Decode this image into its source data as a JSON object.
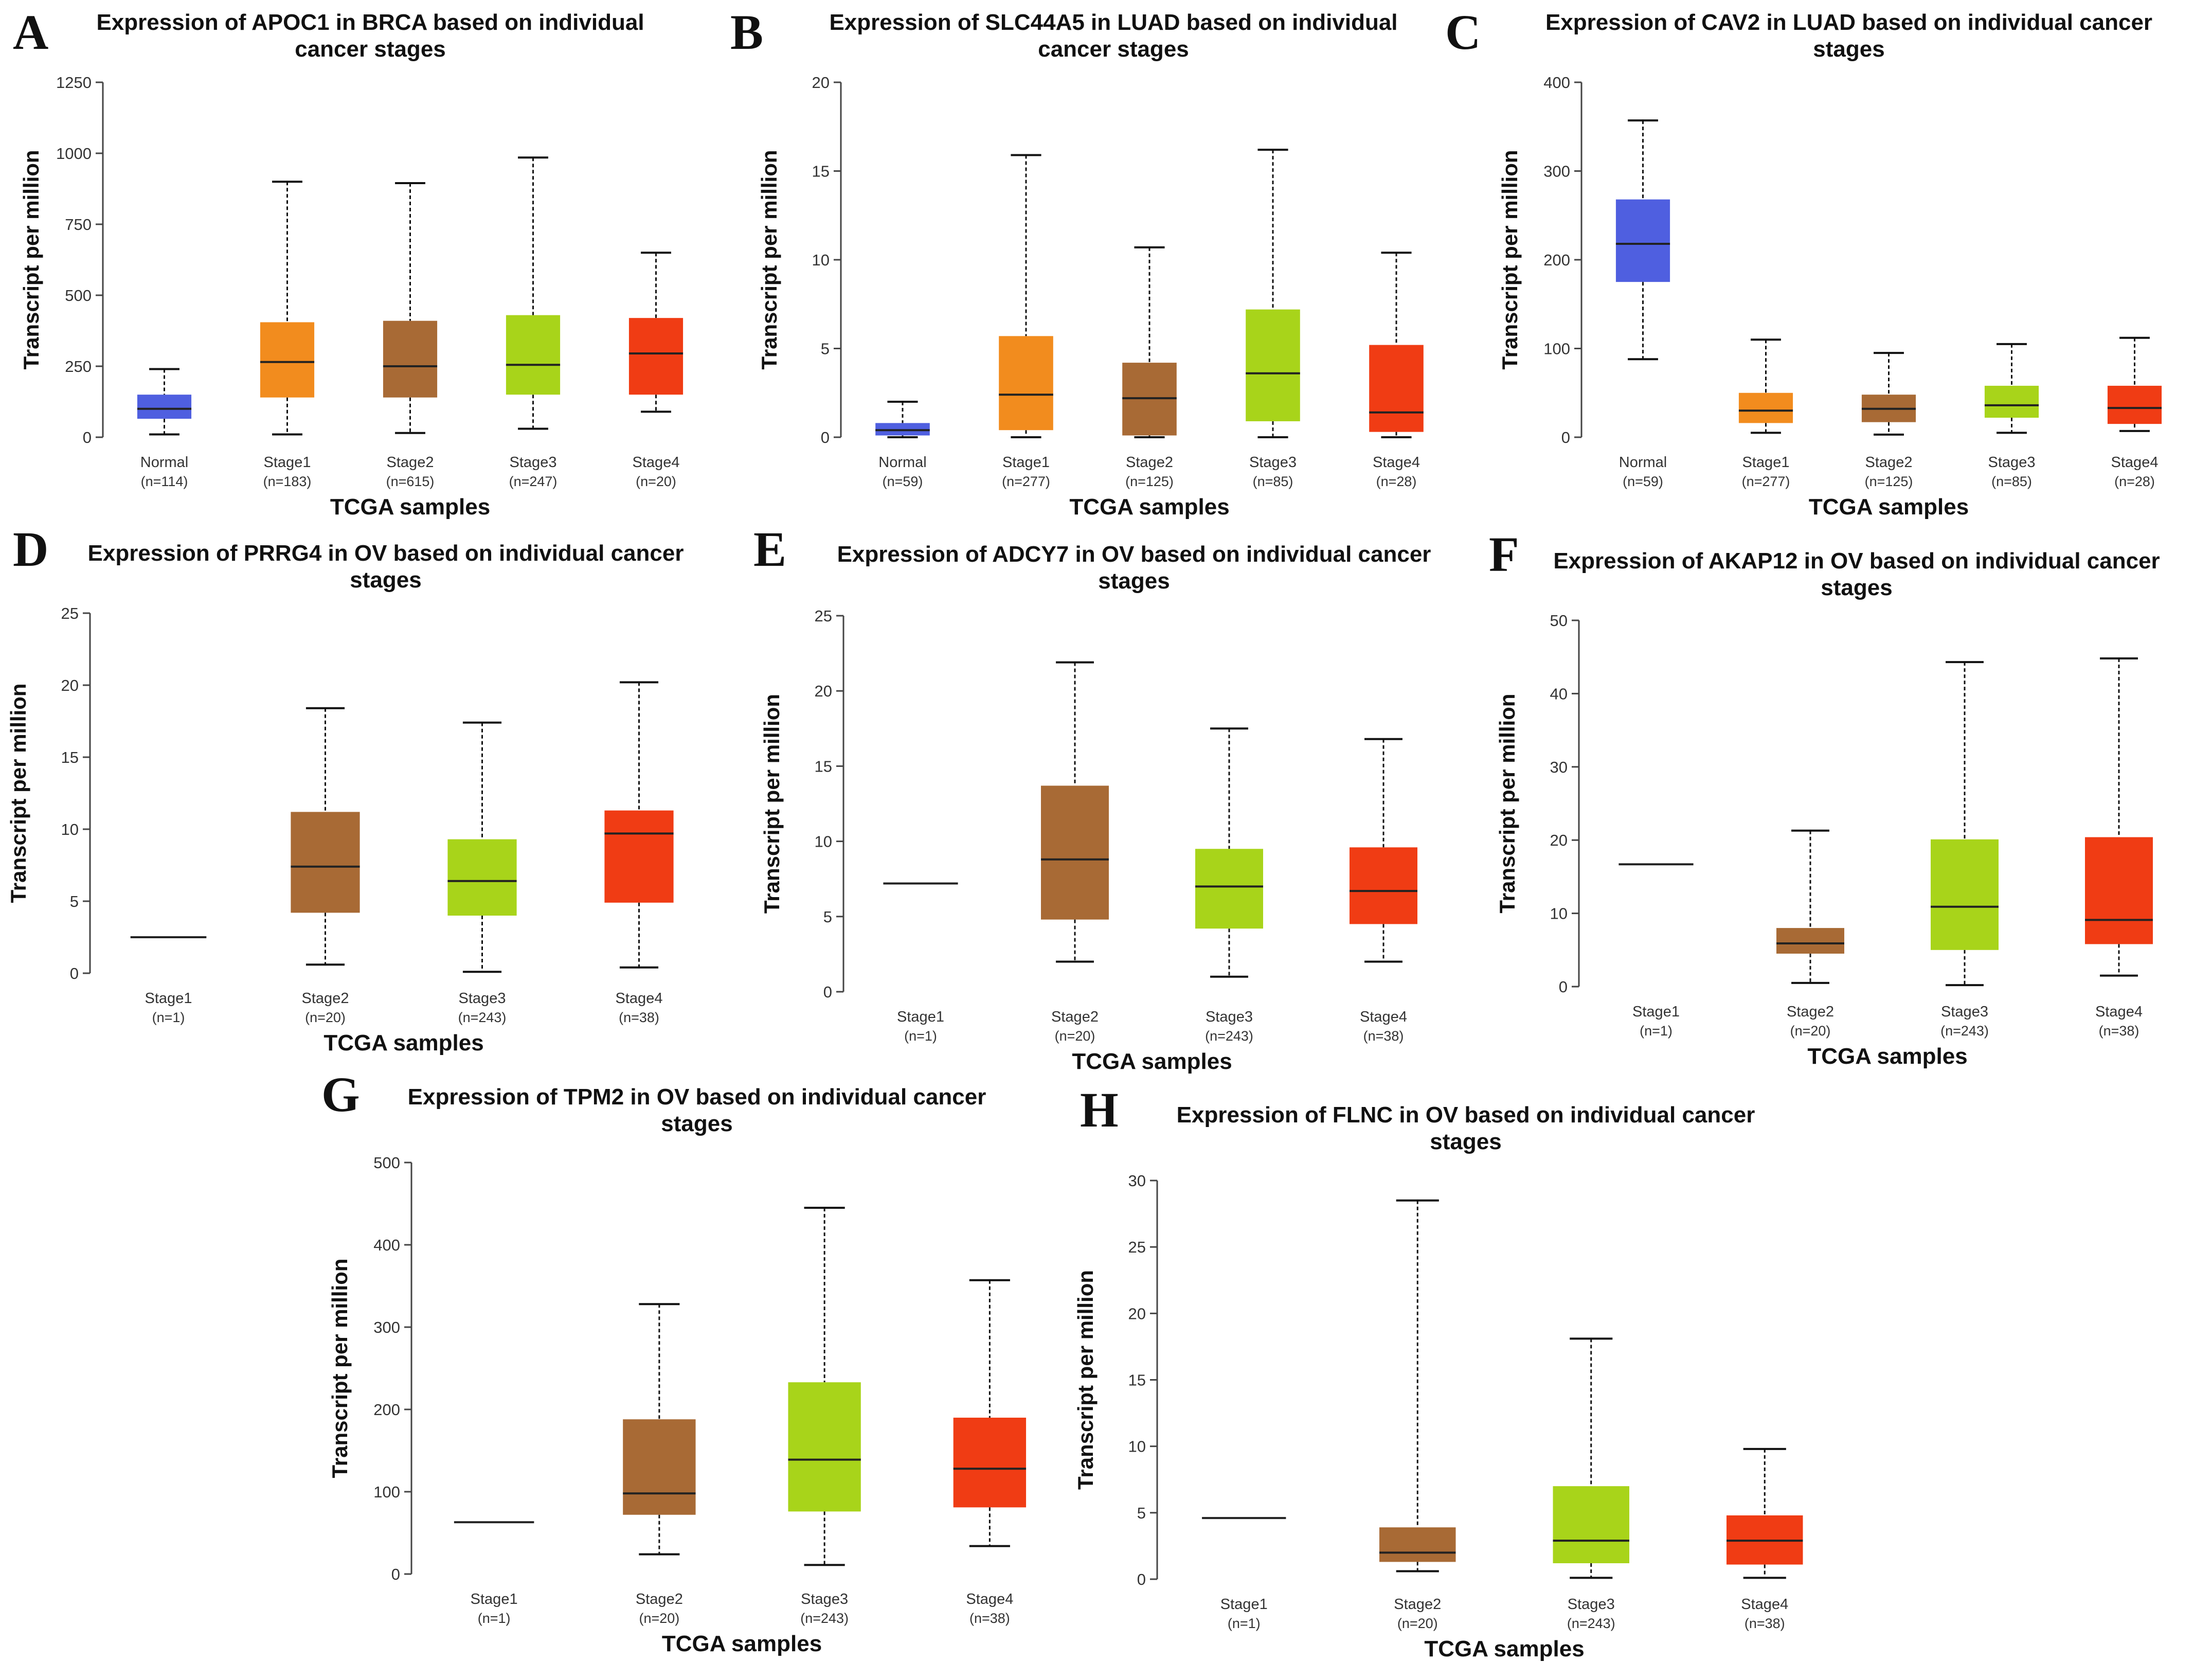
{
  "figure": {
    "layout": "3 rows of box-plot panels: row 1 A-C, row 2 D-F, row 3 G-H"
  },
  "colors": {
    "Normal": "#4f5fe0",
    "Stage1": "#f28c1e",
    "Stage2": "#a86a35",
    "Stage3": "#a8d41a",
    "Stage4": "#f03c14",
    "median": "#222222",
    "axis": "#444444"
  },
  "chart_data": [
    {
      "panel": "A",
      "type": "box",
      "title": "Expression of APOC1 in BRCA based on individual cancer stages",
      "title_lines": [
        "Expression of APOC1 in BRCA based on individual",
        "cancer stages"
      ],
      "xlabel": "TCGA samples",
      "ylabel": "Transcript per million",
      "ylim": [
        0,
        1250
      ],
      "yticks": [
        0,
        250,
        500,
        750,
        1000,
        1250
      ],
      "categories": [
        {
          "name": "Normal",
          "n": "(n=114)",
          "min": 10,
          "q1": 65,
          "median": 100,
          "q3": 150,
          "max": 240
        },
        {
          "name": "Stage1",
          "n": "(n=183)",
          "min": 10,
          "q1": 140,
          "median": 265,
          "q3": 405,
          "max": 900
        },
        {
          "name": "Stage2",
          "n": "(n=615)",
          "min": 15,
          "q1": 140,
          "median": 250,
          "q3": 410,
          "max": 895
        },
        {
          "name": "Stage3",
          "n": "(n=247)",
          "min": 30,
          "q1": 150,
          "median": 255,
          "q3": 430,
          "max": 985
        },
        {
          "name": "Stage4",
          "n": "(n=20)",
          "min": 90,
          "q1": 150,
          "median": 295,
          "q3": 420,
          "max": 650
        }
      ]
    },
    {
      "panel": "B",
      "type": "box",
      "title": "Expression of SLC44A5 in LUAD based on individual cancer stages",
      "title_lines": [
        "Expression of SLC44A5 in LUAD based on individual",
        "cancer stages"
      ],
      "xlabel": "TCGA samples",
      "ylabel": "Transcript per million",
      "ylim": [
        0,
        20
      ],
      "yticks": [
        0,
        5,
        10,
        15,
        20
      ],
      "categories": [
        {
          "name": "Normal",
          "n": "(n=59)",
          "min": 0,
          "q1": 0.1,
          "median": 0.4,
          "q3": 0.8,
          "max": 2.0
        },
        {
          "name": "Stage1",
          "n": "(n=277)",
          "min": 0,
          "q1": 0.4,
          "median": 2.4,
          "q3": 5.7,
          "max": 15.9
        },
        {
          "name": "Stage2",
          "n": "(n=125)",
          "min": 0,
          "q1": 0.1,
          "median": 2.2,
          "q3": 4.2,
          "max": 10.7
        },
        {
          "name": "Stage3",
          "n": "(n=85)",
          "min": 0,
          "q1": 0.9,
          "median": 3.6,
          "q3": 7.2,
          "max": 16.2
        },
        {
          "name": "Stage4",
          "n": "(n=28)",
          "min": 0,
          "q1": 0.3,
          "median": 1.4,
          "q3": 5.2,
          "max": 10.4
        }
      ]
    },
    {
      "panel": "C",
      "type": "box",
      "title": "Expression of CAV2 in LUAD based on individual cancer stages",
      "title_lines": [
        "Expression of CAV2 in LUAD based on individual cancer",
        "stages"
      ],
      "xlabel": "TCGA samples",
      "ylabel": "Transcript per million",
      "ylim": [
        0,
        400
      ],
      "yticks": [
        0,
        100,
        200,
        300,
        400
      ],
      "categories": [
        {
          "name": "Normal",
          "n": "(n=59)",
          "min": 88,
          "q1": 175,
          "median": 218,
          "q3": 268,
          "max": 357
        },
        {
          "name": "Stage1",
          "n": "(n=277)",
          "min": 5,
          "q1": 16,
          "median": 30,
          "q3": 50,
          "max": 110
        },
        {
          "name": "Stage2",
          "n": "(n=125)",
          "min": 3,
          "q1": 17,
          "median": 32,
          "q3": 48,
          "max": 95
        },
        {
          "name": "Stage3",
          "n": "(n=85)",
          "min": 5,
          "q1": 22,
          "median": 36,
          "q3": 58,
          "max": 105
        },
        {
          "name": "Stage4",
          "n": "(n=28)",
          "min": 7,
          "q1": 15,
          "median": 33,
          "q3": 58,
          "max": 112
        }
      ]
    },
    {
      "panel": "D",
      "type": "box",
      "title": "Expression of PRRG4 in OV based on individual cancer stages",
      "title_lines": [
        "Expression of PRRG4 in OV based on individual cancer",
        "stages"
      ],
      "xlabel": "TCGA samples",
      "ylabel": "Transcript per million",
      "ylim": [
        0,
        25
      ],
      "yticks": [
        0,
        5,
        10,
        15,
        20,
        25
      ],
      "categories": [
        {
          "name": "Stage1",
          "n": "(n=1)",
          "min": 2.5,
          "q1": 2.5,
          "median": 2.5,
          "q3": 2.5,
          "max": 2.5
        },
        {
          "name": "Stage2",
          "n": "(n=20)",
          "min": 0.6,
          "q1": 4.2,
          "median": 7.4,
          "q3": 11.2,
          "max": 18.4
        },
        {
          "name": "Stage3",
          "n": "(n=243)",
          "min": 0.1,
          "q1": 4.0,
          "median": 6.4,
          "q3": 9.3,
          "max": 17.4
        },
        {
          "name": "Stage4",
          "n": "(n=38)",
          "min": 0.4,
          "q1": 4.9,
          "median": 9.7,
          "q3": 11.3,
          "max": 20.2
        }
      ]
    },
    {
      "panel": "E",
      "type": "box",
      "title": "Expression of ADCY7 in OV based on individual cancer stages",
      "title_lines": [
        "Expression of ADCY7 in OV based on individual cancer",
        "stages"
      ],
      "xlabel": "TCGA samples",
      "ylabel": "Transcript per million",
      "ylim": [
        0,
        25
      ],
      "yticks": [
        0,
        5,
        10,
        15,
        20,
        25
      ],
      "categories": [
        {
          "name": "Stage1",
          "n": "(n=1)",
          "min": 7.2,
          "q1": 7.2,
          "median": 7.2,
          "q3": 7.2,
          "max": 7.2
        },
        {
          "name": "Stage2",
          "n": "(n=20)",
          "min": 2.0,
          "q1": 4.8,
          "median": 8.8,
          "q3": 13.7,
          "max": 21.9
        },
        {
          "name": "Stage3",
          "n": "(n=243)",
          "min": 1.0,
          "q1": 4.2,
          "median": 7.0,
          "q3": 9.5,
          "max": 17.5
        },
        {
          "name": "Stage4",
          "n": "(n=38)",
          "min": 2.0,
          "q1": 4.5,
          "median": 6.7,
          "q3": 9.6,
          "max": 16.8
        }
      ]
    },
    {
      "panel": "F",
      "type": "box",
      "title": "Expression of AKAP12 in OV based on individual cancer stages",
      "title_lines": [
        "Expression of AKAP12 in OV based on individual cancer",
        "stages"
      ],
      "xlabel": "TCGA samples",
      "ylabel": "Transcript per million",
      "ylim": [
        0,
        50
      ],
      "yticks": [
        0,
        10,
        20,
        30,
        40,
        50
      ],
      "categories": [
        {
          "name": "Stage1",
          "n": "(n=1)",
          "min": 16.7,
          "q1": 16.7,
          "median": 16.7,
          "q3": 16.7,
          "max": 16.7
        },
        {
          "name": "Stage2",
          "n": "(n=20)",
          "min": 0.5,
          "q1": 4.5,
          "median": 5.9,
          "q3": 8.0,
          "max": 21.3
        },
        {
          "name": "Stage3",
          "n": "(n=243)",
          "min": 0.2,
          "q1": 5.0,
          "median": 10.9,
          "q3": 20.1,
          "max": 44.3
        },
        {
          "name": "Stage4",
          "n": "(n=38)",
          "min": 1.5,
          "q1": 5.8,
          "median": 9.1,
          "q3": 20.4,
          "max": 44.8
        }
      ]
    },
    {
      "panel": "G",
      "type": "box",
      "title": "Expression of TPM2 in OV based on individual cancer stages",
      "title_lines": [
        "Expression of TPM2 in OV based on individual cancer",
        "stages"
      ],
      "xlabel": "TCGA samples",
      "ylabel": "Transcript per million",
      "ylim": [
        0,
        500
      ],
      "yticks": [
        0,
        100,
        200,
        300,
        400,
        500
      ],
      "categories": [
        {
          "name": "Stage1",
          "n": "(n=1)",
          "min": 63,
          "q1": 63,
          "median": 63,
          "q3": 63,
          "max": 63
        },
        {
          "name": "Stage2",
          "n": "(n=20)",
          "min": 24,
          "q1": 72,
          "median": 98,
          "q3": 188,
          "max": 328
        },
        {
          "name": "Stage3",
          "n": "(n=243)",
          "min": 11,
          "q1": 76,
          "median": 139,
          "q3": 233,
          "max": 445
        },
        {
          "name": "Stage4",
          "n": "(n=38)",
          "min": 34,
          "q1": 81,
          "median": 128,
          "q3": 190,
          "max": 357
        }
      ]
    },
    {
      "panel": "H",
      "type": "box",
      "title": "Expression of FLNC in OV based on individual cancer stages",
      "title_lines": [
        "Expression of FLNC in OV based on individual cancer",
        "stages"
      ],
      "xlabel": "TCGA samples",
      "ylabel": "Transcript per million",
      "ylim": [
        0,
        30
      ],
      "yticks": [
        0,
        5,
        10,
        15,
        20,
        25,
        30
      ],
      "categories": [
        {
          "name": "Stage1",
          "n": "(n=1)",
          "min": 4.6,
          "q1": 4.6,
          "median": 4.6,
          "q3": 4.6,
          "max": 4.6
        },
        {
          "name": "Stage2",
          "n": "(n=20)",
          "min": 0.6,
          "q1": 1.3,
          "median": 2.0,
          "q3": 3.9,
          "max": 28.5
        },
        {
          "name": "Stage3",
          "n": "(n=243)",
          "min": 0.1,
          "q1": 1.2,
          "median": 2.9,
          "q3": 7.0,
          "max": 18.1
        },
        {
          "name": "Stage4",
          "n": "(n=38)",
          "min": 0.1,
          "q1": 1.1,
          "median": 2.9,
          "q3": 4.8,
          "max": 9.8
        }
      ]
    }
  ]
}
